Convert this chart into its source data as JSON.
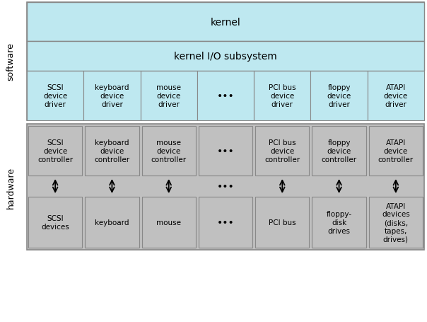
{
  "fig_width": 6.04,
  "fig_height": 4.56,
  "dpi": 100,
  "bg_color": "#ffffff",
  "light_blue": "#bee8f0",
  "light_gray": "#c0c0c0",
  "border_color": "#888888",
  "text_color": "#000000",
  "kernel_label": "kernel",
  "subsystem_label": "kernel I/O subsystem",
  "software_label": "software",
  "hardware_label": "hardware",
  "driver_labels": [
    "SCSI\ndevice\ndriver",
    "keyboard\ndevice\ndriver",
    "mouse\ndevice\ndriver",
    "...",
    "PCI bus\ndevice\ndriver",
    "floppy\ndevice\ndriver",
    "ATAPI\ndevice\ndriver"
  ],
  "controller_labels": [
    "SCSI\ndevice\ncontroller",
    "keyboard\ndevice\ncontroller",
    "mouse\ndevice\ncontroller",
    "...",
    "PCI bus\ndevice\ncontroller",
    "floppy\ndevice\ncontroller",
    "ATAPI\ndevice\ncontroller"
  ],
  "device_labels": [
    "SCSI\ndevices",
    "keyboard",
    "mouse",
    "...",
    "PCI bus",
    "floppy-\ndisk\ndrives",
    "ATAPI\ndevices\n(disks,\ntapes,\ndrives)"
  ]
}
